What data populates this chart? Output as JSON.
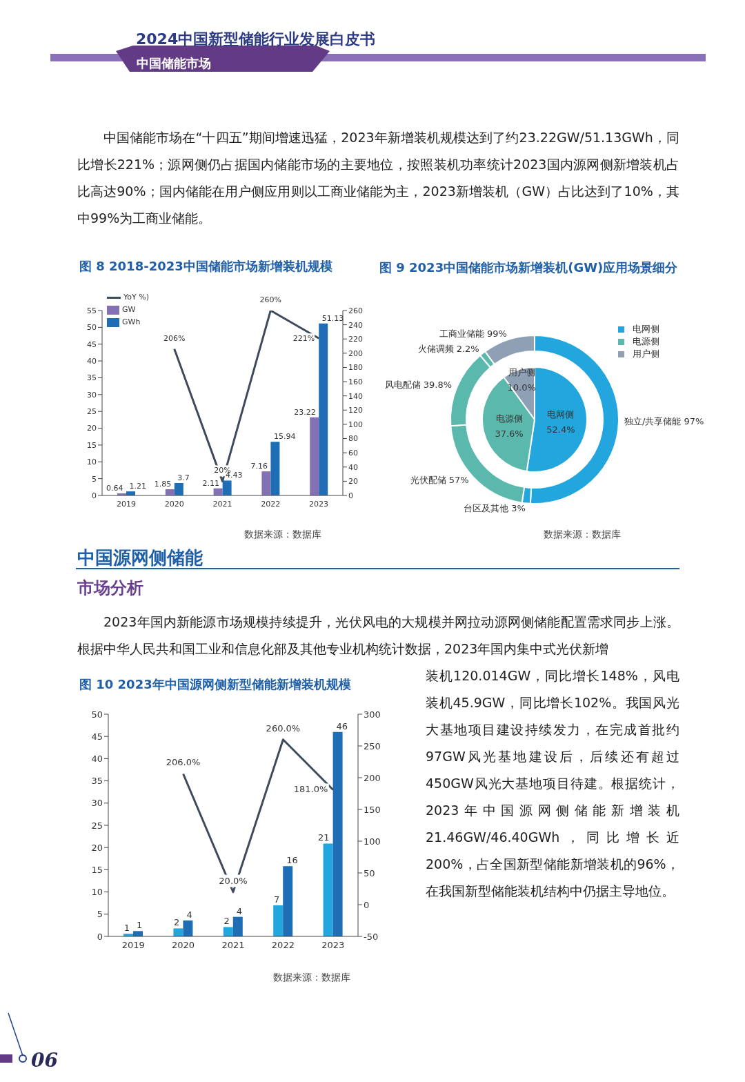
{
  "chart_data": [
    {
      "type": "bar",
      "title": "图 8 2018-2023中国储能市场新增装机规模",
      "categories": [
        "2019",
        "2020",
        "2021",
        "2022",
        "2023"
      ],
      "series": [
        {
          "name": "YoY %)",
          "type": "line",
          "axis": "y2",
          "color": "#3d4b5c",
          "values": [
            null,
            206,
            20,
            260,
            221
          ],
          "value_labels": [
            null,
            "206%",
            "20%",
            "260%",
            "221%"
          ]
        },
        {
          "name": "GW",
          "color": "#8470b4",
          "values": [
            0.64,
            1.85,
            2.11,
            7.16,
            23.22
          ],
          "value_labels": [
            "0.64",
            "1.85",
            "2.11",
            "7.16",
            "23.22"
          ]
        },
        {
          "name": "GWh",
          "color": "#1f6eb5",
          "values": [
            1.21,
            3.7,
            4.43,
            15.94,
            51.13
          ],
          "value_labels": [
            "1.21",
            "3.7",
            "4.43",
            "15.94",
            "51.13"
          ]
        }
      ],
      "ylim": [
        0,
        55
      ],
      "yticks": [
        0,
        5,
        10,
        15,
        20,
        25,
        30,
        35,
        40,
        45,
        50,
        55
      ],
      "y2lim": [
        0,
        260
      ],
      "y2ticks": [
        0,
        20,
        40,
        60,
        80,
        100,
        120,
        140,
        160,
        180,
        200,
        220,
        240,
        260
      ],
      "legend": "top left",
      "annotations": [
        "2024中国新型储能行业发展白皮书",
        "中国储能市场",
        "中国储能市场在“十四五”期间增速迅猛，2023年新增装机规模达到了约23.22GW/51.13GWh，同比增长221%；源网侧仍占据国内储能市场的主要地位，按照装机功率统计2023国内源网侧新增装机占比高达90%；国内储能在用户侧应用则以工商业储能为主，2023新增装机（GW）占比达到了10%，其中99%为工商业储能。",
        "数据来源：数据库"
      ]
    },
    {
      "type": "pie",
      "title": "图 9 2023中国储能市场新增装机(GW)应用场景细分",
      "categories": [
        "电网侧",
        "电源侧",
        "用户侧"
      ],
      "values": [
        52.4,
        37.6,
        10.0
      ],
      "value_labels": [
        "52.4%",
        "37.6%",
        "10.0%"
      ],
      "colors": [
        "#22a6dd",
        "#5bb8ad",
        "#8fa0b4"
      ],
      "legend": "top right",
      "annotations": [
        "数据来源：数据库"
      ]
    },
    {
      "type": "donut",
      "categories": [
        "独立/共享储能 97%",
        "台区及其他 3%",
        "光伏配储 57%",
        "风电配储 39.8%",
        "火储调频 2.2%",
        "工商业储能 99%"
      ],
      "values": [
        50.8,
        1.6,
        21.4,
        15.0,
        1.2,
        10.0
      ],
      "colors": [
        "#22a6dd",
        "#22a6dd",
        "#5bb8ad",
        "#5bb8ad",
        "#5bb8ad",
        "#8fa0b4"
      ]
    },
    {
      "type": "bar",
      "title": "图 10 2023年中国源网侧新型储能新增装机规模",
      "categories": [
        "2019",
        "2020",
        "2021",
        "2022",
        "2023"
      ],
      "series": [
        {
          "type": "line",
          "axis": "y2",
          "color": "#3d4b5c",
          "values": [
            null,
            206,
            20,
            260,
            181
          ],
          "value_labels": [
            null,
            "206.0%",
            "20.0%",
            "260.0%",
            "181.0%"
          ]
        },
        {
          "color": "#22a6dd",
          "values": [
            0.6,
            1.8,
            2.1,
            7.0,
            20.9
          ],
          "value_labels": [
            "1",
            "2",
            "2",
            "7",
            "21"
          ]
        },
        {
          "color": "#1f6eb5",
          "values": [
            1.2,
            3.6,
            4.4,
            15.8,
            46.0
          ],
          "value_labels": [
            "1",
            "4",
            "4",
            "16",
            "46"
          ]
        }
      ],
      "ylim": [
        0,
        50
      ],
      "yticks": [
        0,
        5,
        10,
        15,
        20,
        25,
        30,
        35,
        40,
        45,
        50
      ],
      "y2lim": [
        -50,
        300
      ],
      "y2ticks": [
        -50,
        0,
        50,
        100,
        150,
        200,
        250,
        300
      ],
      "annotations": [
        "中国源网侧储能",
        "市场分析",
        "2023年国内新能源市场规模持续提升，光伏风电的大规模并网拉动源网侧储能配置需求同步上涨。根据中华人民共和国工业和信息化部及其他专业机构统计数据，2023年国内集中式光伏新增",
        "装机120.014GW，同比增长148%，风电装机45.9GW，同比增长102%。我国风光大基地项目建设持续发力，在完成首批约97GW风光基地建设后，后续还有超过450GW风光大基地项目待建。根据统计，2023年中国源网侧储能新增装机21.46GW/46.40GWh，同比增长近200%，占全国新型储能新增装机的96%，在我国新型储能装机结构中仍据主导地位。",
        "数据来源：数据库",
        "06"
      ]
    }
  ]
}
